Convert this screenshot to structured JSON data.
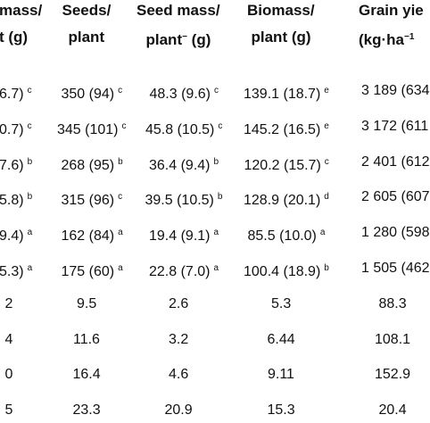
{
  "table": {
    "header": [
      [
        {
          "text": "mass/"
        },
        {
          "text": "t (g)"
        }
      ],
      [
        {
          "text": "Seeds/"
        },
        {
          "text": "plant"
        }
      ],
      [
        {
          "text": "Seed mass/"
        },
        {
          "text": "plant",
          "sup": "−",
          "after": " (g)"
        }
      ],
      [
        {
          "text": "Biomass/"
        },
        {
          "text": "plant (g)"
        }
      ],
      [
        {
          "text": "Grain yie"
        },
        {
          "text": "(kg·ha",
          "sup": "−1"
        }
      ]
    ],
    "rows": [
      [
        {
          "text": "6.7)",
          "sup": "c"
        },
        {
          "text": "350 (94)",
          "sup": "c"
        },
        {
          "text": "48.3 (9.6)",
          "sup": "c"
        },
        {
          "text": "139.1 (18.7)",
          "sup": "e"
        },
        {
          "text": "3 189 (634"
        }
      ],
      [
        {
          "text": "0.7)",
          "sup": "c"
        },
        {
          "text": "345 (101)",
          "sup": "c"
        },
        {
          "text": "45.8 (10.5)",
          "sup": "c"
        },
        {
          "text": "145.2 (16.5)",
          "sup": "e"
        },
        {
          "text": "3 172 (611"
        }
      ],
      [
        {
          "text": "7.6)",
          "sup": "b"
        },
        {
          "text": "268 (95)",
          "sup": "b"
        },
        {
          "text": "36.4 (9.4)",
          "sup": "b"
        },
        {
          "text": "120.2 (15.7)",
          "sup": "c"
        },
        {
          "text": "2 401 (612"
        }
      ],
      [
        {
          "text": "5.8)",
          "sup": "b"
        },
        {
          "text": "315 (96)",
          "sup": "c"
        },
        {
          "text": "39.5 (10.5)",
          "sup": "b"
        },
        {
          "text": "128.9 (20.1)",
          "sup": "d"
        },
        {
          "text": "2 605 (607"
        }
      ],
      [
        {
          "text": "9.4)",
          "sup": "a"
        },
        {
          "text": "162 (84)",
          "sup": "a"
        },
        {
          "text": "19.4 (9.1)",
          "sup": "a"
        },
        {
          "text": "85.5 (10.0)",
          "sup": "a"
        },
        {
          "text": "1 280 (598"
        }
      ],
      [
        {
          "text": "5.3)",
          "sup": "a"
        },
        {
          "text": "175 (60)",
          "sup": "a"
        },
        {
          "text": "22.8 (7.0)",
          "sup": "a"
        },
        {
          "text": "100.4 (18.9)",
          "sup": "b"
        },
        {
          "text": "1 505 (462"
        }
      ],
      [
        {
          "text": "2"
        },
        {
          "text": "9.5"
        },
        {
          "text": "2.6"
        },
        {
          "text": "5.3"
        },
        {
          "text": "88.3"
        }
      ],
      [
        {
          "text": "4"
        },
        {
          "text": "11.6"
        },
        {
          "text": "3.2"
        },
        {
          "text": "6.44"
        },
        {
          "text": "108.1"
        }
      ],
      [
        {
          "text": "0"
        },
        {
          "text": "16.4"
        },
        {
          "text": "4.6"
        },
        {
          "text": "9.11"
        },
        {
          "text": "152.9"
        }
      ],
      [
        {
          "text": "5"
        },
        {
          "text": "23.3"
        },
        {
          "text": "20.9"
        },
        {
          "text": "15.3"
        },
        {
          "text": "20.4"
        }
      ]
    ]
  }
}
